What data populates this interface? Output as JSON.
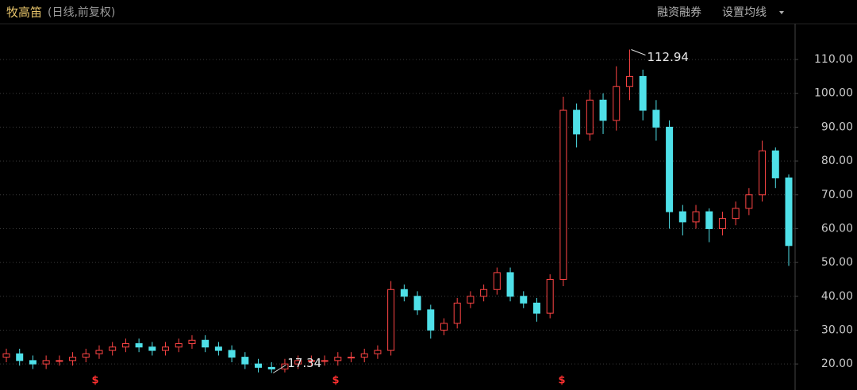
{
  "chart_data": {
    "type": "candlestick",
    "title": "牧高笛",
    "subtitle": "(日线,前复权)",
    "toolbar": [
      "融资融券",
      "设置均线"
    ],
    "event_label": "$",
    "open": [
      22,
      23,
      21,
      20,
      21,
      21,
      22,
      23,
      24,
      25,
      26,
      25,
      24,
      25,
      26,
      27,
      25,
      24,
      22,
      20,
      19,
      18.5,
      20,
      21,
      21,
      21,
      22,
      22,
      23,
      24,
      42,
      40,
      36,
      30,
      32,
      38,
      40,
      42,
      47,
      40,
      38,
      35,
      45,
      95,
      88,
      98,
      92,
      102,
      105,
      95,
      90,
      65,
      62,
      65,
      60,
      63,
      66,
      70,
      83,
      75
    ],
    "high": [
      24.5,
      24.5,
      22.5,
      22.5,
      22.5,
      23.5,
      24.5,
      25.5,
      26.5,
      27.5,
      27.5,
      26.5,
      26.5,
      27.5,
      28.5,
      28.5,
      26.5,
      25.5,
      23.5,
      21.5,
      20.5,
      21.5,
      22.5,
      22.5,
      22.5,
      23.5,
      23.5,
      24.5,
      25.5,
      44.5,
      43.5,
      41.5,
      37.5,
      33.5,
      39.5,
      41.5,
      43.5,
      48.5,
      48.5,
      41.5,
      39.5,
      46.5,
      99,
      97,
      101,
      100,
      108,
      112.94,
      107,
      98,
      92,
      67,
      67,
      66,
      65,
      68,
      72,
      86,
      84,
      76
    ],
    "low": [
      20.5,
      19.5,
      18.5,
      18.5,
      19.5,
      19.5,
      20.5,
      21.5,
      22.5,
      23.5,
      23.5,
      22.5,
      22.5,
      23.5,
      24.5,
      23.5,
      22.5,
      20.5,
      18.5,
      17.5,
      17.34,
      17.5,
      18.5,
      19.5,
      19.5,
      19.5,
      20.5,
      20.5,
      21.5,
      22.5,
      38.5,
      34.5,
      27.5,
      28.5,
      30.5,
      36.5,
      38.5,
      40.5,
      38.5,
      36.5,
      32.5,
      33.5,
      43,
      84,
      86,
      88,
      89,
      98,
      92,
      86,
      60,
      58,
      60,
      56,
      58,
      61,
      64,
      68,
      72,
      49
    ],
    "close": [
      23,
      21,
      20,
      21,
      21,
      22,
      23,
      24,
      25,
      26,
      25,
      24,
      25,
      26,
      27,
      25,
      24,
      22,
      20,
      19,
      18.5,
      20,
      21,
      21,
      21,
      22,
      22,
      23,
      24,
      42,
      40,
      36,
      30,
      32,
      38,
      40,
      42,
      47,
      40,
      38,
      35,
      45,
      95,
      88,
      98,
      92,
      102,
      105,
      95,
      90,
      65,
      62,
      65,
      60,
      63,
      66,
      70,
      83,
      75,
      55
    ],
    "up_color": "#ff4545",
    "down_color": "#4fe0e8",
    "high_label": 112.94,
    "low_label": 17.34,
    "ylim": [
      12.3,
      114
    ],
    "yticks": [
      {
        "value": 20,
        "label": "20.00"
      },
      {
        "value": 30,
        "label": "30.00"
      },
      {
        "value": 40,
        "label": "40.00"
      },
      {
        "value": 50,
        "label": "50.00"
      },
      {
        "value": 60,
        "label": "60.00"
      },
      {
        "value": 70,
        "label": "70.00"
      },
      {
        "value": 80,
        "label": "80.00"
      },
      {
        "value": 90,
        "label": "90.00"
      },
      {
        "value": 100,
        "label": "100.00"
      },
      {
        "value": 110,
        "label": "110.00"
      }
    ],
    "grid": true
  }
}
